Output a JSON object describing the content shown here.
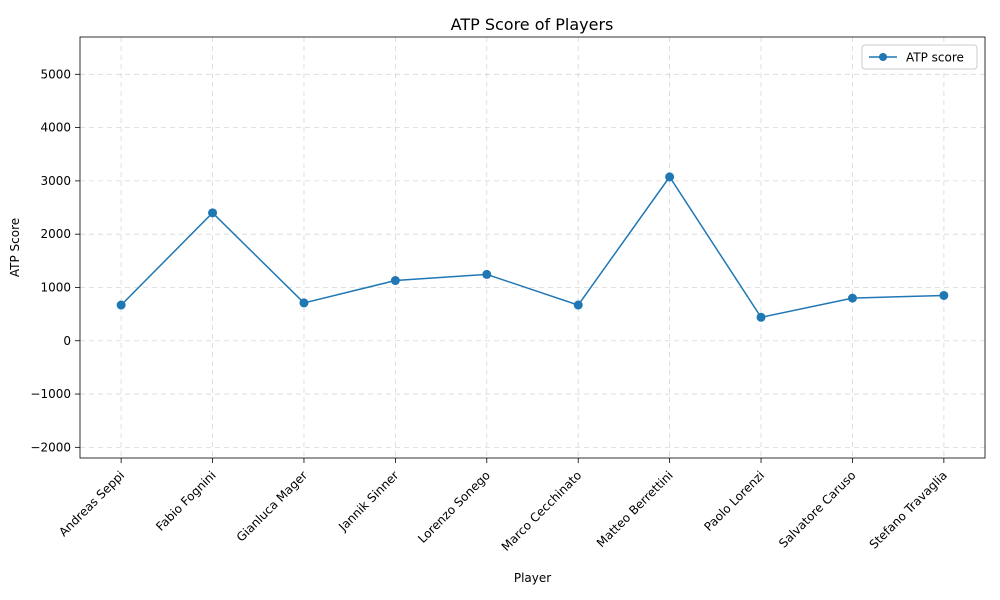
{
  "chart_data": {
    "type": "line",
    "title": "ATP Score of Players",
    "xlabel": "Player",
    "ylabel": "ATP Score",
    "categories": [
      "Andreas Seppi",
      "Fabio Fognini",
      "Gianluca Mager",
      "Jannik Sinner",
      "Lorenzo Sonego",
      "Marco Cecchinato",
      "Matteo Berrettini",
      "Paolo Lorenzi",
      "Salvatore Caruso",
      "Stefano Travaglia"
    ],
    "series": [
      {
        "name": "ATP score",
        "values": [
          670,
          2400,
          710,
          1130,
          1245,
          670,
          3075,
          440,
          800,
          850
        ],
        "color": "#1f77b4"
      }
    ],
    "ylim": [
      -2200,
      5700
    ],
    "yticks": [
      -2000,
      -1000,
      0,
      1000,
      2000,
      3000,
      4000,
      5000
    ],
    "grid": true,
    "legend_position": "top-right"
  }
}
